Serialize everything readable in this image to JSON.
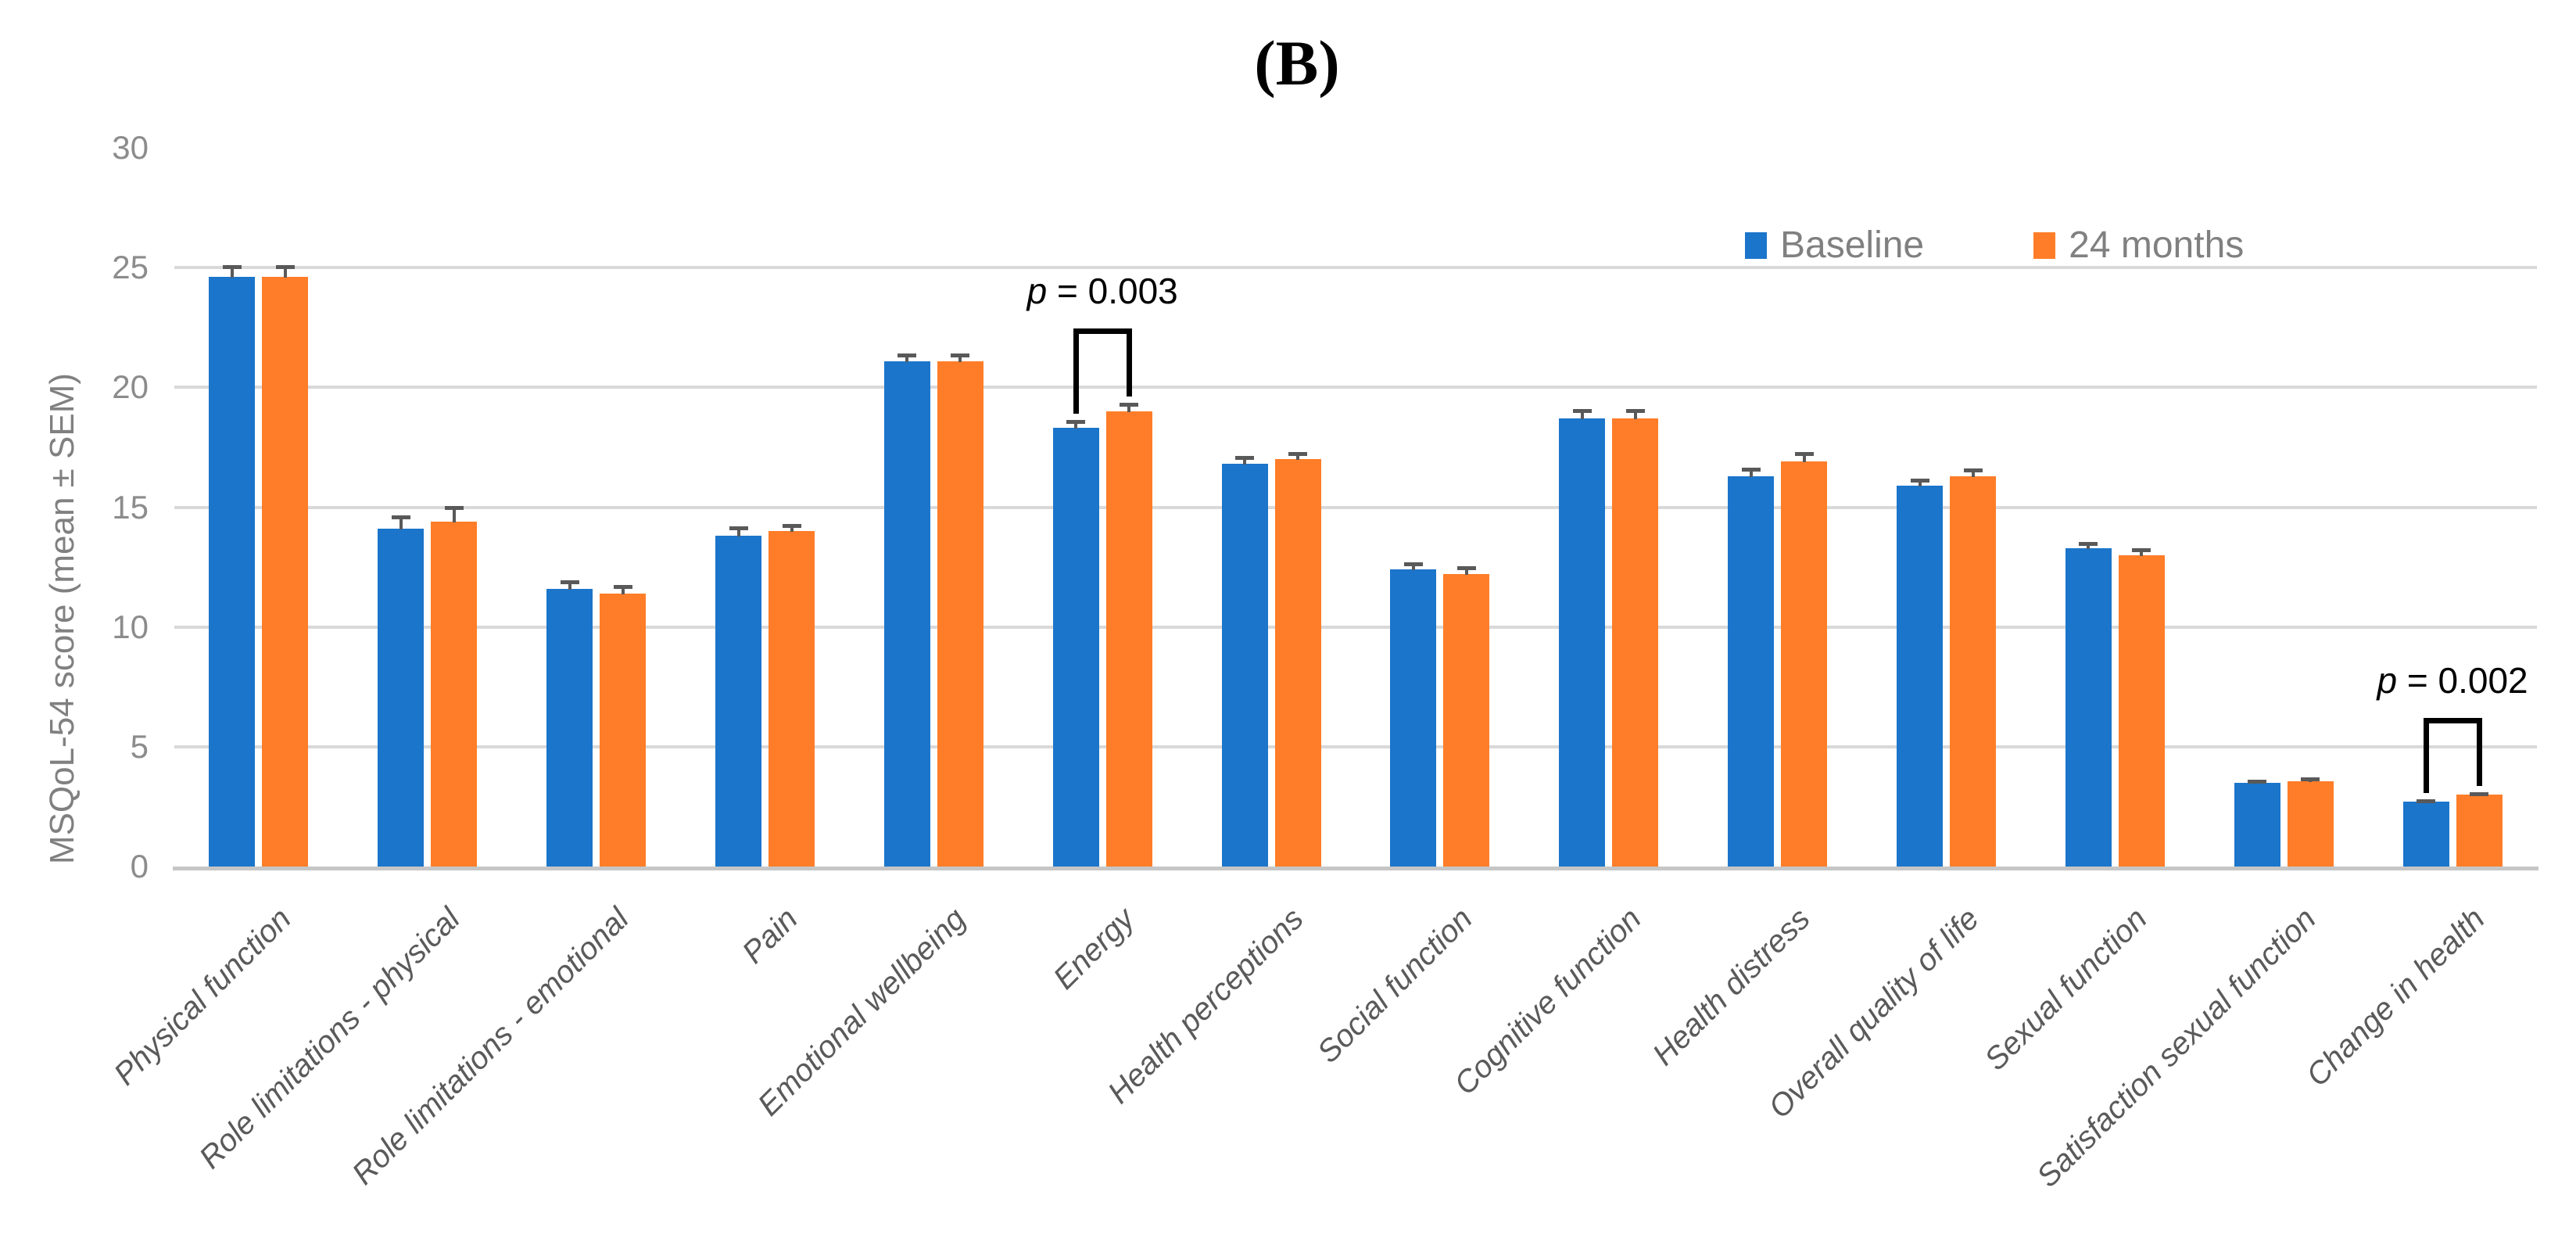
{
  "title": "(B)",
  "y_axis": {
    "label": "MSQoL-54 score (mean ± SEM)",
    "min": 0,
    "max": 30,
    "step": 5,
    "ticks": [
      0,
      5,
      10,
      15,
      20,
      25,
      30
    ]
  },
  "legend": {
    "items": [
      {
        "label": "Baseline",
        "color": "#1b75cb"
      },
      {
        "label": "24 months",
        "color": "#ff7d28"
      }
    ]
  },
  "colors": {
    "baseline_bar": "#1b75cb",
    "months24_bar": "#ff7d28",
    "gridline": "#d9d9d9",
    "axis_line": "#c6c6c6",
    "error_bar": "#595959",
    "y_tick_label": "#8c8c8c",
    "x_category_label": "#5a5a5a",
    "legend_label": "#808080",
    "annotation_text": "#000000",
    "background": "#ffffff"
  },
  "chart_data": {
    "type": "bar",
    "title": "(B)",
    "xlabel": "",
    "ylabel": "MSQoL-54 score (mean ± SEM)",
    "ylim": [
      0,
      30
    ],
    "ytick_step": 5,
    "grid": "horizontal",
    "legend_position": "top-right",
    "categories": [
      "Physical function",
      "Role limitations - physical",
      "Role limitations - emotional",
      "Pain",
      "Emotional wellbeing",
      "Energy",
      "Health perceptions",
      "Social function",
      "Cognitive function",
      "Health distress",
      "Overall quality of life",
      "Sexual function",
      "Satisfaction sexual function",
      "Change in health"
    ],
    "series": [
      {
        "name": "Baseline",
        "color": "#1b75cb",
        "values": [
          24.6,
          14.1,
          11.6,
          13.8,
          21.1,
          18.3,
          16.8,
          12.4,
          18.7,
          16.3,
          15.9,
          13.3,
          3.5,
          2.7
        ],
        "sem": [
          0.5,
          0.55,
          0.35,
          0.4,
          0.3,
          0.35,
          0.35,
          0.3,
          0.4,
          0.35,
          0.3,
          0.25,
          0.12,
          0.12
        ]
      },
      {
        "name": "24 months",
        "color": "#ff7d28",
        "values": [
          24.6,
          14.4,
          11.4,
          14.0,
          21.1,
          19.0,
          17.0,
          12.2,
          18.7,
          16.9,
          16.3,
          13.0,
          3.55,
          3.0
        ],
        "sem": [
          0.5,
          0.65,
          0.35,
          0.3,
          0.3,
          0.35,
          0.3,
          0.35,
          0.4,
          0.4,
          0.3,
          0.3,
          0.18,
          0.1
        ]
      }
    ],
    "annotations": [
      {
        "text": "p = 0.003",
        "text_italic": "p",
        "text_rest": " = 0.003",
        "category": "Energy",
        "category_index": 5
      },
      {
        "text": "p = 0.002",
        "text_italic": "p",
        "text_rest": " = 0.002",
        "category": "Change in health",
        "category_index": 13
      }
    ]
  }
}
